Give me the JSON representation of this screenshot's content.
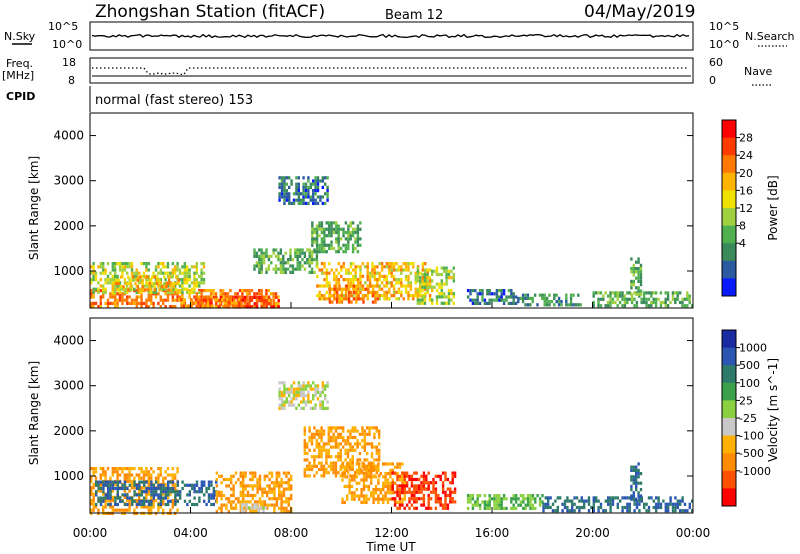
{
  "header": {
    "station": "Zhongshan Station (fitACF)",
    "beam": "Beam 12",
    "date": "04/May/2019"
  },
  "sky_panel": {
    "left_label": "N.Sky",
    "right_label": "N.Search",
    "left_ticks": [
      "10^5",
      "10^0"
    ],
    "right_ticks": [
      "10^5",
      "10^0"
    ]
  },
  "freq_panel": {
    "left_label_line1": "Freq.",
    "left_label_line2": "[MHz]",
    "right_label": "Nave",
    "left_ticks": [
      "18",
      "8"
    ],
    "right_ticks": [
      "60",
      "0"
    ]
  },
  "cpid": {
    "label": "CPID",
    "mode": "normal (fast stereo) 153"
  },
  "axes": {
    "ylabel": "Slant Range [km]",
    "xlabel": "Time UT",
    "y_ticks": [
      "4000",
      "3000",
      "2000",
      "1000"
    ],
    "x_ticks": [
      "00:00",
      "04:00",
      "08:00",
      "12:00",
      "16:00",
      "20:00",
      "00:00"
    ]
  },
  "colorbars": {
    "power": {
      "label": "Power [dB]",
      "ticks": [
        "28",
        "24",
        "20",
        "16",
        "12",
        "8",
        "4"
      ],
      "colors": [
        "#ff0000",
        "#ff3c00",
        "#ff7800",
        "#ffb400",
        "#f0e000",
        "#a0d040",
        "#50b050",
        "#3a8a5a",
        "#2a5aa0",
        "#0a1aff"
      ]
    },
    "velocity": {
      "label": "Velocity [m s^-1]",
      "ticks": [
        "1000",
        "500",
        "100",
        "25",
        "-25",
        "-100",
        "-500",
        "-1000"
      ],
      "colors": [
        "#1a2aa0",
        "#2a55b0",
        "#2e7a6a",
        "#3aa04a",
        "#8ad040",
        "#c8c8c8",
        "#ffb000",
        "#ff8c00",
        "#ff5000",
        "#ff0000"
      ]
    }
  },
  "chart_data": {
    "type": "heatmap",
    "x_range_hours": [
      0,
      24
    ],
    "y_range_km": [
      180,
      4500
    ],
    "panels": [
      {
        "name": "Power",
        "clusters": [
          {
            "t": [
              0.0,
              7.5
            ],
            "r": [
              200,
              600
            ],
            "value": 24
          },
          {
            "t": [
              0.0,
              4.5
            ],
            "r": [
              500,
              1200
            ],
            "value": 16
          },
          {
            "t": [
              1.0,
              3.5
            ],
            "r": [
              600,
              900
            ],
            "value": 20
          },
          {
            "t": [
              4.5,
              7.5
            ],
            "r": [
              200,
              450
            ],
            "value": 28
          },
          {
            "t": [
              3.5,
              6.0
            ],
            "r": [
              200,
              400
            ],
            "value": 24
          },
          {
            "t": [
              6.5,
              9.0
            ],
            "r": [
              1000,
              1500
            ],
            "value": 12
          },
          {
            "t": [
              7.5,
              9.5
            ],
            "r": [
              2500,
              3100
            ],
            "value": 8
          },
          {
            "t": [
              8.8,
              10.8
            ],
            "r": [
              1400,
              2100
            ],
            "value": 12
          },
          {
            "t": [
              9.0,
              13.5
            ],
            "r": [
              350,
              1200
            ],
            "value": 20
          },
          {
            "t": [
              9.5,
              11.5
            ],
            "r": [
              300,
              700
            ],
            "value": 24
          },
          {
            "t": [
              13.0,
              14.5
            ],
            "r": [
              300,
              1100
            ],
            "value": 16
          },
          {
            "t": [
              15.0,
              17.0
            ],
            "r": [
              250,
              600
            ],
            "value": 8
          },
          {
            "t": [
              17.0,
              19.5
            ],
            "r": [
              250,
              500
            ],
            "value": 10
          },
          {
            "t": [
              20.0,
              24.0
            ],
            "r": [
              250,
              550
            ],
            "value": 12
          },
          {
            "t": [
              21.5,
              21.9
            ],
            "r": [
              500,
              1300
            ],
            "value": 12
          }
        ]
      },
      {
        "name": "Velocity",
        "clusters": [
          {
            "t": [
              0.0,
              3.5
            ],
            "r": [
              200,
              1200
            ],
            "value": -100
          },
          {
            "t": [
              0.2,
              5.0
            ],
            "r": [
              400,
              900
            ],
            "value": 500
          },
          {
            "t": [
              5.0,
              8.0
            ],
            "r": [
              200,
              1100
            ],
            "value": -100
          },
          {
            "t": [
              6.0,
              7.0
            ],
            "r": [
              200,
              400
            ],
            "value": 0
          },
          {
            "t": [
              7.5,
              9.5
            ],
            "r": [
              2500,
              3100
            ],
            "value": 0
          },
          {
            "t": [
              8.5,
              11.5
            ],
            "r": [
              1000,
              2100
            ],
            "value": -100
          },
          {
            "t": [
              10.0,
              12.5
            ],
            "r": [
              400,
              1300
            ],
            "value": -100
          },
          {
            "t": [
              12.0,
              14.5
            ],
            "r": [
              300,
              1100
            ],
            "value": -500
          },
          {
            "t": [
              15.0,
              18.0
            ],
            "r": [
              250,
              600
            ],
            "value": 100
          },
          {
            "t": [
              18.0,
              24.0
            ],
            "r": [
              250,
              550
            ],
            "value": 500
          },
          {
            "t": [
              21.5,
              21.9
            ],
            "r": [
              500,
              1300
            ],
            "value": 500
          }
        ]
      }
    ]
  }
}
